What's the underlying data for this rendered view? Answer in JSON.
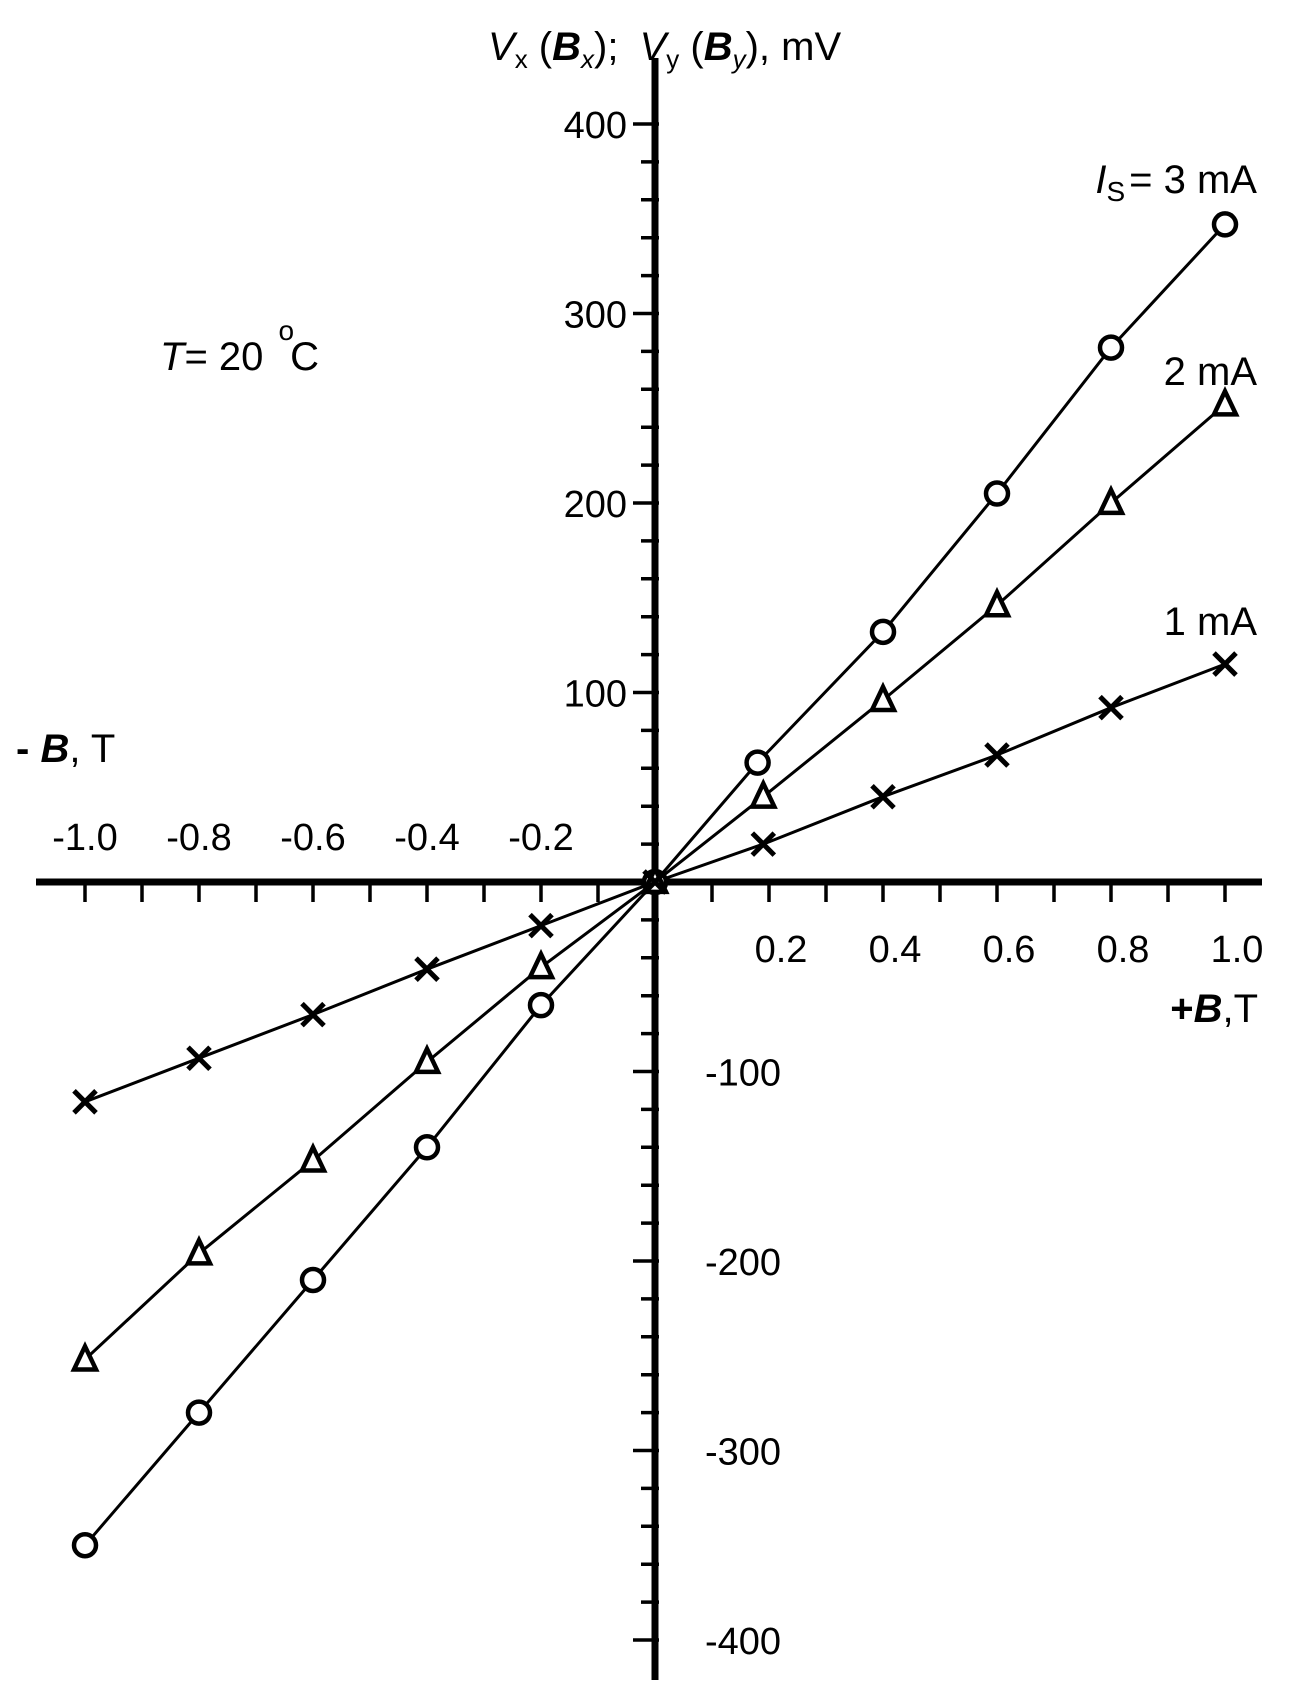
{
  "chart_data": {
    "type": "line",
    "y_axis_title": {
      "v1": "V",
      "v1_sub": "x",
      "b1": "B",
      "b1_sub": "x",
      "sep": "; ",
      "v2": "V",
      "v2_sub": "y",
      "b2": "B",
      "b2_sub": "y",
      "unit": ", mV"
    },
    "x_axis_title_negative": {
      "sign": "- ",
      "var": "B",
      "unit": ", T"
    },
    "x_axis_title_positive": {
      "sign": "+",
      "var": "B",
      "unit": ",T"
    },
    "annotation": {
      "var": "T",
      "eq": "= 20 ",
      "degree": "o",
      "unit": "C"
    },
    "xlim": [
      -1.0,
      1.0
    ],
    "ylim": [
      -400,
      400
    ],
    "x_ticks_negative": [
      "-1.0",
      "-0.8",
      "-0.6",
      "-0.4",
      "-0.2"
    ],
    "x_ticks_positive": [
      "0.2",
      "0.4",
      "0.6",
      "0.8",
      "1.0"
    ],
    "y_ticks_positive": [
      "100",
      "200",
      "300",
      "400"
    ],
    "y_ticks_negative": [
      "-100",
      "-200",
      "-300",
      "-400"
    ],
    "grid": false,
    "series": [
      {
        "label": "I",
        "label_sub": "S",
        "label_rest": "= 3 mA",
        "marker": "circle",
        "x": [
          -1.0,
          -0.8,
          -0.6,
          -0.4,
          -0.2,
          0.0,
          0.18,
          0.4,
          0.6,
          0.8,
          1.0
        ],
        "y": [
          -350,
          -280,
          -210,
          -140,
          -65,
          0,
          63,
          132,
          205,
          282,
          347
        ]
      },
      {
        "label": "2 mA",
        "marker": "triangle",
        "x": [
          -1.0,
          -0.8,
          -0.6,
          -0.4,
          -0.2,
          0.0,
          0.19,
          0.4,
          0.6,
          0.8,
          1.0
        ],
        "y": [
          -252,
          -196,
          -147,
          -95,
          -45,
          0,
          45,
          96,
          146,
          200,
          252
        ]
      },
      {
        "label": "1 mA",
        "marker": "cross",
        "x": [
          -1.0,
          -0.8,
          -0.6,
          -0.4,
          -0.2,
          0.0,
          0.19,
          0.4,
          0.6,
          0.8,
          1.0
        ],
        "y": [
          -116,
          -93,
          -70,
          -46,
          -23,
          0,
          20,
          45,
          67,
          92,
          115
        ]
      }
    ]
  }
}
